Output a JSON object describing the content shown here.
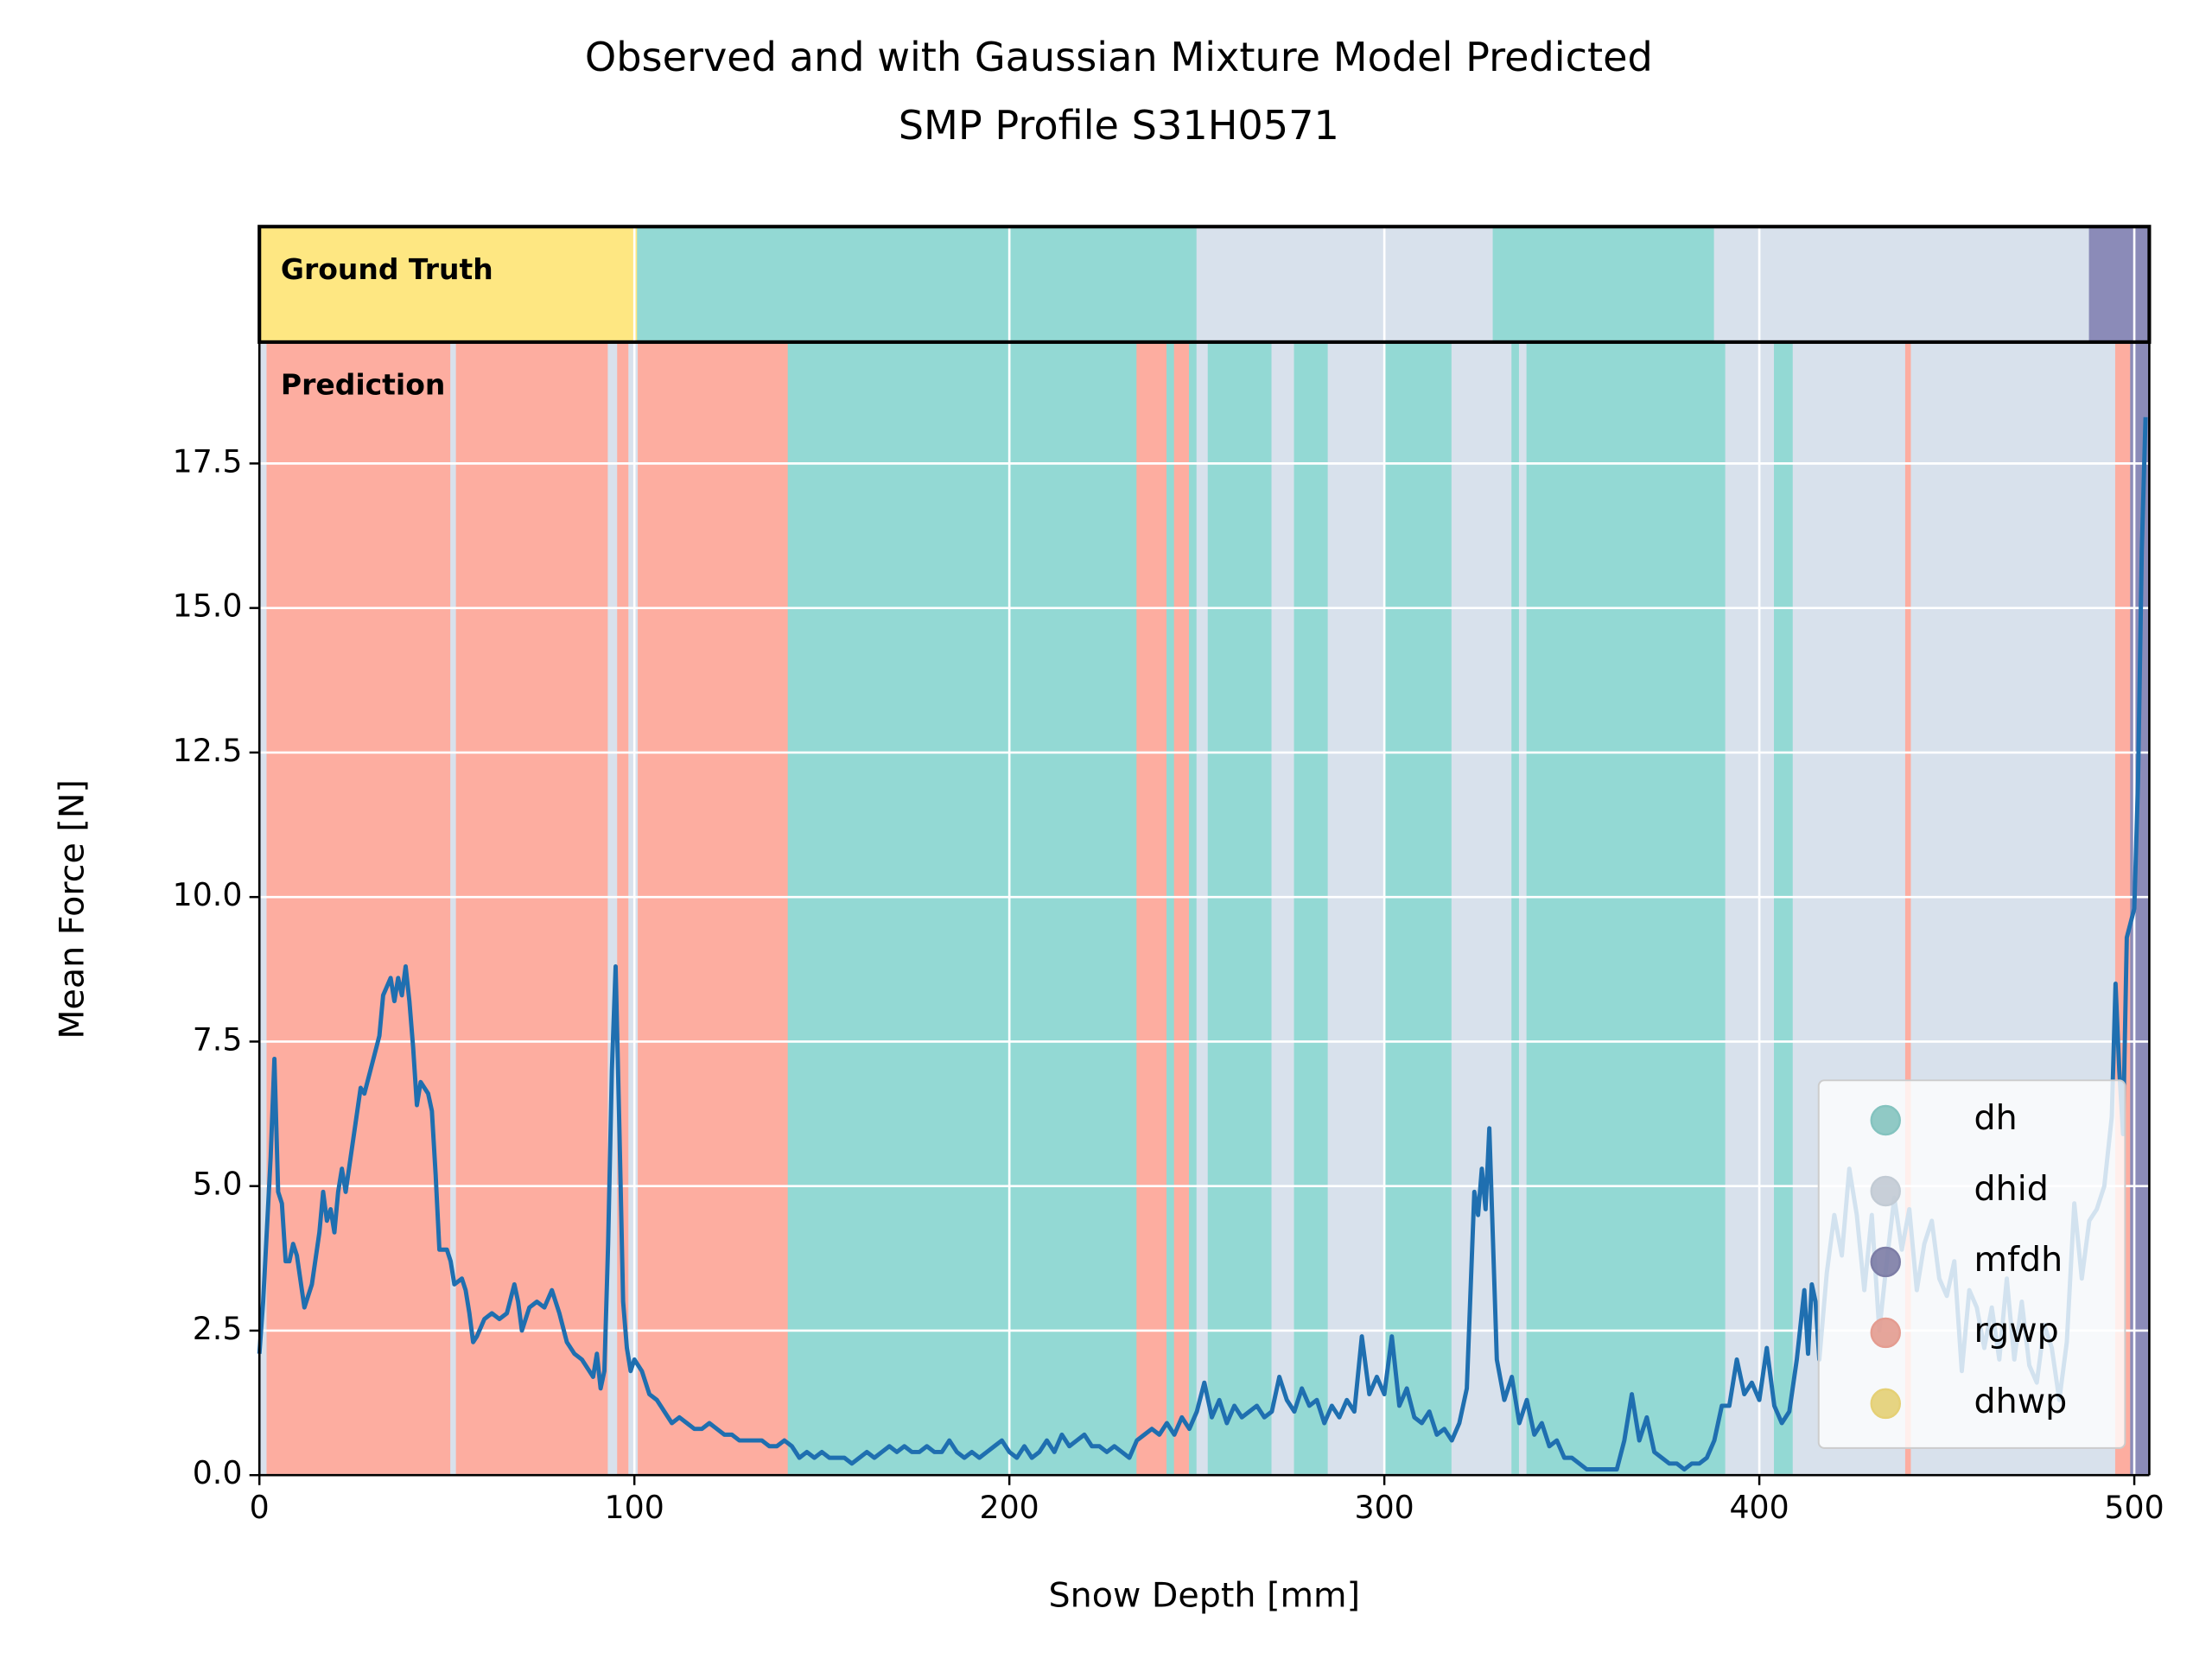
{
  "chart_data": {
    "type": "line",
    "title": [
      "Observed and with Gaussian Mixture Model Predicted",
      "SMP Profile S31H0571"
    ],
    "xlabel": "Snow Depth [mm]",
    "ylabel": "Mean Force [N]",
    "xlim": [
      0,
      504
    ],
    "ylim": [
      0,
      19.6
    ],
    "xticks": [
      0,
      100,
      200,
      300,
      400,
      500
    ],
    "yticks": [
      {
        "value": 0,
        "label": "0.0"
      },
      2.5,
      {
        "value": 5,
        "label": "5.0"
      },
      7.5,
      {
        "value": 10,
        "label": "10.0"
      },
      12.5,
      {
        "value": 15,
        "label": "15.0"
      },
      17.5
    ],
    "grid": true,
    "series": [
      {
        "color": "#1f6fb0",
        "x": [
          0,
          1,
          3,
          4,
          5,
          6,
          7,
          8,
          9,
          10,
          12,
          14,
          16,
          17,
          18,
          19,
          20,
          21,
          22,
          23,
          25,
          27,
          28,
          30,
          32,
          33,
          35,
          36,
          37,
          38,
          39,
          40,
          41,
          42,
          43,
          45,
          46,
          47,
          48,
          50,
          51,
          52,
          54,
          55,
          56,
          57,
          58,
          60,
          62,
          64,
          66,
          68,
          69,
          70,
          72,
          74,
          76,
          78,
          80,
          82,
          84,
          86,
          88,
          89,
          90,
          91,
          92,
          93,
          94,
          95,
          96,
          97,
          98,
          99,
          100,
          102,
          104,
          106,
          108,
          110,
          112,
          114,
          116,
          118,
          120,
          122,
          124,
          126,
          128,
          130,
          132,
          134,
          136,
          138,
          140,
          142,
          144,
          146,
          148,
          150,
          152,
          154,
          156,
          158,
          160,
          162,
          164,
          166,
          168,
          170,
          172,
          174,
          176,
          178,
          180,
          182,
          184,
          186,
          188,
          190,
          192,
          194,
          196,
          198,
          200,
          202,
          204,
          206,
          208,
          210,
          212,
          214,
          216,
          218,
          220,
          222,
          224,
          226,
          228,
          230,
          232,
          234,
          236,
          238,
          240,
          242,
          244,
          246,
          248,
          250,
          252,
          254,
          256,
          258,
          260,
          262,
          264,
          266,
          268,
          270,
          272,
          274,
          276,
          278,
          280,
          282,
          284,
          286,
          288,
          290,
          292,
          294,
          296,
          298,
          300,
          302,
          304,
          306,
          308,
          310,
          312,
          314,
          316,
          318,
          320,
          322,
          324,
          325,
          326,
          327,
          328,
          329,
          330,
          332,
          334,
          336,
          338,
          340,
          342,
          344,
          346,
          348,
          350,
          352,
          354,
          356,
          358,
          360,
          362,
          364,
          366,
          368,
          370,
          372,
          374,
          376,
          378,
          380,
          382,
          384,
          386,
          388,
          390,
          392,
          394,
          396,
          398,
          400,
          402,
          404,
          406,
          408,
          410,
          412,
          413,
          414,
          415,
          416,
          418,
          420,
          422,
          424,
          426,
          428,
          430,
          432,
          434,
          436,
          438,
          440,
          442,
          444,
          446,
          448,
          450,
          452,
          454,
          456,
          458,
          460,
          462,
          464,
          466,
          468,
          470,
          472,
          474,
          476,
          478,
          480,
          482,
          484,
          486,
          488,
          490,
          492,
          494,
          495,
          496,
          497,
          498,
          500,
          501,
          502,
          503
        ],
        "values": [
          2.1,
          3,
          5.5,
          7.2,
          4.9,
          4.7,
          3.7,
          3.7,
          4,
          3.8,
          2.9,
          3.3,
          4.2,
          4.9,
          4.4,
          4.6,
          4.2,
          4.9,
          5.3,
          4.9,
          5.8,
          6.7,
          6.6,
          7.1,
          7.6,
          8.3,
          8.6,
          8.2,
          8.6,
          8.3,
          8.8,
          8.2,
          7.4,
          6.4,
          6.8,
          6.6,
          6.3,
          5.2,
          3.9,
          3.9,
          3.7,
          3.3,
          3.4,
          3.2,
          2.8,
          2.3,
          2.4,
          2.7,
          2.8,
          2.7,
          2.8,
          3.3,
          3.0,
          2.5,
          2.9,
          3.0,
          2.9,
          3.2,
          2.8,
          2.3,
          2.1,
          2.0,
          1.8,
          1.7,
          2.1,
          1.5,
          1.8,
          4,
          7,
          8.8,
          6,
          3,
          2.2,
          1.8,
          2.0,
          1.8,
          1.4,
          1.3,
          1.1,
          0.9,
          1.0,
          0.9,
          0.8,
          0.8,
          0.9,
          0.8,
          0.7,
          0.7,
          0.6,
          0.6,
          0.6,
          0.6,
          0.5,
          0.5,
          0.6,
          0.5,
          0.3,
          0.4,
          0.3,
          0.4,
          0.3,
          0.3,
          0.3,
          0.2,
          0.3,
          0.4,
          0.3,
          0.4,
          0.5,
          0.4,
          0.5,
          0.4,
          0.4,
          0.5,
          0.4,
          0.4,
          0.6,
          0.4,
          0.3,
          0.4,
          0.3,
          0.4,
          0.5,
          0.6,
          0.4,
          0.3,
          0.5,
          0.3,
          0.4,
          0.6,
          0.4,
          0.7,
          0.5,
          0.6,
          0.7,
          0.5,
          0.5,
          0.4,
          0.5,
          0.4,
          0.3,
          0.6,
          0.7,
          0.8,
          0.7,
          0.9,
          0.7,
          1.0,
          0.8,
          1.1,
          1.6,
          1.0,
          1.3,
          0.9,
          1.2,
          1.0,
          1.1,
          1.2,
          1.0,
          1.1,
          1.7,
          1.3,
          1.1,
          1.5,
          1.2,
          1.3,
          0.9,
          1.2,
          1.0,
          1.3,
          1.1,
          2.4,
          1.4,
          1.7,
          1.4,
          2.4,
          1.2,
          1.5,
          1.0,
          0.9,
          1.1,
          0.7,
          0.8,
          0.6,
          0.9,
          1.5,
          4.9,
          4.5,
          5.3,
          4.6,
          6.0,
          4.0,
          2.0,
          1.3,
          1.7,
          0.9,
          1.3,
          0.7,
          0.9,
          0.5,
          0.6,
          0.3,
          0.3,
          0.2,
          0.1,
          0.1,
          0.1,
          0.1,
          0.1,
          0.6,
          1.4,
          0.6,
          1.0,
          0.4,
          0.3,
          0.2,
          0.2,
          0.1,
          0.2,
          0.2,
          0.3,
          0.6,
          1.2,
          1.2,
          2.0,
          1.4,
          1.6,
          1.3,
          2.2,
          1.2,
          0.9,
          1.1,
          2.0,
          3.2,
          2.1,
          3.3,
          3.0,
          2.0,
          3.5,
          4.5,
          3.8,
          5.3,
          4.5,
          3.2,
          4.5,
          2.5,
          3.7,
          4.8,
          3.9,
          4.6,
          3.2,
          4.0,
          4.4,
          3.4,
          3.1,
          3.7,
          1.8,
          3.2,
          2.9,
          2.2,
          2.9,
          2.0,
          3.4,
          2.0,
          3.0,
          1.9,
          1.6,
          2.6,
          2.2,
          1.3,
          2.3,
          4.7,
          3.4,
          4.4,
          4.6,
          5.0,
          6.2,
          8.5,
          7.0,
          5.9,
          9.3,
          9.8,
          12,
          16,
          18.3
        ]
      }
    ],
    "legend": {
      "loc": "lower right",
      "entries": [
        {
          "name": "dh",
          "color": "#93d9d4"
        },
        {
          "name": "dhid",
          "color": "#d8e1ec"
        },
        {
          "name": "mfdh",
          "color": "#8b8bb8"
        },
        {
          "name": "rgwp",
          "color": "#fdada0"
        },
        {
          "name": "dhwp",
          "color": "#fee782"
        }
      ]
    },
    "ground_truth": {
      "label": "Ground Truth",
      "segments": [
        {
          "start": 0,
          "end": 100.8,
          "class": "dhwp"
        },
        {
          "start": 100.8,
          "end": 250,
          "class": "dh"
        },
        {
          "start": 250,
          "end": 329,
          "class": "dhid"
        },
        {
          "start": 329,
          "end": 388,
          "class": "dh"
        },
        {
          "start": 388,
          "end": 488,
          "class": "dhid"
        },
        {
          "start": 488,
          "end": 504,
          "class": "mfdh"
        }
      ]
    },
    "prediction": {
      "label": "Prediction",
      "segments": [
        {
          "start": 0,
          "end": 2,
          "class": "dhid"
        },
        {
          "start": 2,
          "end": 51,
          "class": "rgwp"
        },
        {
          "start": 51,
          "end": 52.5,
          "class": "dhid"
        },
        {
          "start": 52.5,
          "end": 93,
          "class": "rgwp"
        },
        {
          "start": 93,
          "end": 95.5,
          "class": "dhid"
        },
        {
          "start": 95.5,
          "end": 98.5,
          "class": "rgwp"
        },
        {
          "start": 98.5,
          "end": 101,
          "class": "dhid"
        },
        {
          "start": 101,
          "end": 141,
          "class": "rgwp"
        },
        {
          "start": 141,
          "end": 234,
          "class": "dh"
        },
        {
          "start": 234,
          "end": 242,
          "class": "rgwp"
        },
        {
          "start": 242,
          "end": 244,
          "class": "dh"
        },
        {
          "start": 244,
          "end": 248,
          "class": "rgwp"
        },
        {
          "start": 248,
          "end": 250,
          "class": "dh"
        },
        {
          "start": 250,
          "end": 253,
          "class": "dhid"
        },
        {
          "start": 253,
          "end": 270,
          "class": "dh"
        },
        {
          "start": 270,
          "end": 276,
          "class": "dhid"
        },
        {
          "start": 276,
          "end": 285,
          "class": "dh"
        },
        {
          "start": 285,
          "end": 300,
          "class": "dhid"
        },
        {
          "start": 300,
          "end": 318,
          "class": "dh"
        },
        {
          "start": 318,
          "end": 334,
          "class": "dhid"
        },
        {
          "start": 334,
          "end": 336,
          "class": "dh"
        },
        {
          "start": 336,
          "end": 338,
          "class": "dhid"
        },
        {
          "start": 338,
          "end": 391,
          "class": "dh"
        },
        {
          "start": 391,
          "end": 404,
          "class": "dhid"
        },
        {
          "start": 404,
          "end": 409,
          "class": "dh"
        },
        {
          "start": 409,
          "end": 439,
          "class": "dhid"
        },
        {
          "start": 439,
          "end": 440.5,
          "class": "rgwp"
        },
        {
          "start": 440.5,
          "end": 495,
          "class": "dhid"
        },
        {
          "start": 495,
          "end": 499,
          "class": "rgwp"
        },
        {
          "start": 499,
          "end": 504,
          "class": "mfdh"
        }
      ]
    }
  }
}
